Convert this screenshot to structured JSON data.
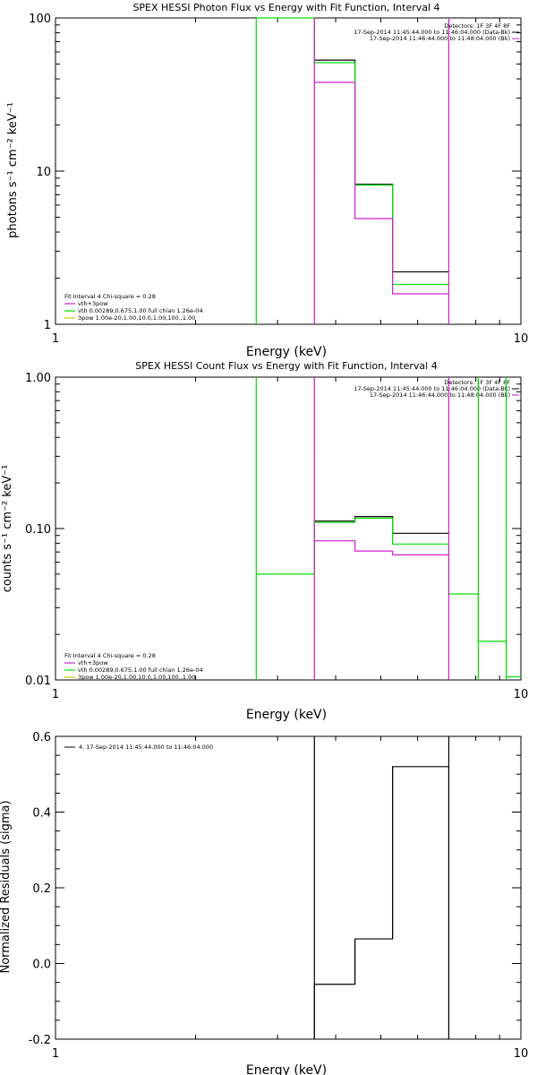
{
  "colors": {
    "background": "#ffffff",
    "axis": "#000000",
    "data": "#000000",
    "total_fit": "#000000",
    "vth_plus_3pow": "#d01fd0",
    "vth": "#00dd00",
    "three_pow": "#c8c800",
    "background_counts": "#c020c0"
  },
  "chart_data": [
    {
      "type": "line",
      "title": "SPEX HESSI Photon Flux vs Energy with Fit Function, Interval 4",
      "xlabel": "Energy (keV)",
      "ylabel": "photons s⁻¹ cm⁻² keV⁻¹",
      "xscale": "log",
      "yscale": "log",
      "xlim": [
        1,
        10
      ],
      "ylim": [
        1,
        100
      ],
      "xticks": [
        {
          "v": 1,
          "label": "1"
        },
        {
          "v": 10,
          "label": "10"
        }
      ],
      "yticks": [
        {
          "v": 1,
          "label": "1"
        },
        {
          "v": 10,
          "label": "10"
        },
        {
          "v": 100,
          "label": "100"
        }
      ],
      "vlines": [
        {
          "x": 3.6,
          "style": "dotted"
        },
        {
          "x": 7.0,
          "style": "dashed"
        }
      ],
      "legend_right": {
        "lines": [
          "Detectors: 1F 3F 4F 8F",
          "17-Sep-2014 11:45:44.000 to 11:46:04.000 (Data-Bk)",
          "17-Sep-2014 11:46:44.000 to 11:48:04.000 (Bk)"
        ]
      },
      "legend_left": {
        "header": "Fit Interval  4    Chi-square = 0.28",
        "entries": [
          {
            "label": "vth+3pow",
            "color": "#d01fd0"
          },
          {
            "label": "vth 0.00289,0.675,1.00  full chian 1.26e-04",
            "color": "#00dd00"
          },
          {
            "label": "3pow 1.00e-20,1.00,10.0,1.00,100.,1.00",
            "color": "#c8c800"
          }
        ]
      },
      "series": [
        {
          "color": "#000000",
          "edges": [
            3.6,
            4.4,
            5.3,
            6.3,
            7.0
          ],
          "values": [
            53,
            8.2,
            2.2,
            2.2
          ]
        },
        {
          "color": "#00dd00",
          "edges": [
            2.7,
            3.6,
            4.4,
            5.3,
            6.3,
            7.0
          ],
          "values": [
            100,
            51,
            8.1,
            1.82,
            1.82
          ]
        },
        {
          "color": "#d01fd0",
          "edges": [
            3.6,
            4.4,
            5.3,
            6.3,
            7.0
          ],
          "values": [
            38,
            4.9,
            1.58,
            1.58
          ]
        }
      ],
      "drops": [
        {
          "x": 2.7,
          "color": "#00dd00"
        },
        {
          "x": 3.6,
          "color": "#d01fd0"
        },
        {
          "x": 7.0,
          "color": "#d01fd0"
        }
      ]
    },
    {
      "type": "line",
      "title": "SPEX HESSI Count Flux vs Energy with Fit Function, Interval 4",
      "xlabel": "Energy (keV)",
      "ylabel": "counts s⁻¹ cm⁻² keV⁻¹",
      "xscale": "log",
      "yscale": "log",
      "xlim": [
        1,
        10
      ],
      "ylim": [
        0.01,
        1
      ],
      "xticks": [
        {
          "v": 1,
          "label": "1"
        },
        {
          "v": 10,
          "label": "10"
        }
      ],
      "yticks": [
        {
          "v": 0.01,
          "label": "0.01"
        },
        {
          "v": 0.1,
          "label": "0.10"
        },
        {
          "v": 1,
          "label": "1.00"
        }
      ],
      "vlines": [
        {
          "x": 3.6,
          "style": "dotted"
        },
        {
          "x": 7.0,
          "style": "dashed"
        }
      ],
      "legend_right": {
        "lines": [
          "Detectors: 1F 3F 4F 8F",
          "17-Sep-2014 11:45:44.000 to 11:46:04.000 (Data-Bk)",
          "17-Sep-2014 11:46:44.000 to 11:48:04.000 (Bk)"
        ]
      },
      "legend_left": {
        "header": "Fit Interval  4    Chi-square = 0.28",
        "entries": [
          {
            "label": "vth+3pow",
            "color": "#d01fd0"
          },
          {
            "label": "vth 0.00289,0.675,1.00  full chian 1.26e-04",
            "color": "#00dd00"
          },
          {
            "label": "3pow 1.00e-20,1.00,10.0,1.00,100.,1.00",
            "color": "#c8c800"
          }
        ]
      },
      "series": [
        {
          "color": "#000000",
          "edges": [
            3.6,
            4.4,
            5.3,
            6.3,
            7.0
          ],
          "values": [
            0.112,
            0.12,
            0.093,
            0.093
          ]
        },
        {
          "color": "#00dd00",
          "edges": [
            2.7,
            3.6,
            4.4,
            5.3,
            6.3,
            7.0,
            8.1,
            9.3,
            10.0
          ],
          "values": [
            0.05,
            0.11,
            0.117,
            0.079,
            0.079,
            0.037,
            0.018,
            0.0105
          ]
        },
        {
          "color": "#d01fd0",
          "edges": [
            3.6,
            4.4,
            5.3,
            6.3,
            7.0
          ],
          "values": [
            0.083,
            0.071,
            0.067,
            0.067
          ]
        }
      ],
      "drops": [
        {
          "x": 2.7,
          "color": "#00dd00"
        },
        {
          "x": 3.6,
          "color": "#d01fd0"
        },
        {
          "x": 7.0,
          "color": "#d01fd0"
        },
        {
          "x": 8.1,
          "color": "#00dd00"
        },
        {
          "x": 9.3,
          "color": "#00dd00"
        }
      ]
    },
    {
      "type": "line",
      "title": "",
      "xlabel": "Energy (keV)",
      "ylabel": "Normalized Residuals (sigma)",
      "xscale": "log",
      "yscale": "linear",
      "xlim": [
        1,
        10
      ],
      "ylim": [
        -0.2,
        0.6
      ],
      "xticks": [
        {
          "v": 1,
          "label": "1"
        },
        {
          "v": 10,
          "label": "10"
        }
      ],
      "yticks": [
        {
          "v": -0.2,
          "label": "-0.2"
        },
        {
          "v": 0.0,
          "label": "0.0"
        },
        {
          "v": 0.2,
          "label": "0.2"
        },
        {
          "v": 0.4,
          "label": "0.4"
        },
        {
          "v": 0.6,
          "label": "0.6"
        }
      ],
      "legend_right": null,
      "legend_left": null,
      "legend_top": {
        "label": "4. 17-Sep-2014 11:45:44.000 to 11:46:04.000",
        "color": "#000000"
      },
      "series": [
        {
          "color": "#000000",
          "edges": [
            3.6,
            4.4,
            5.3,
            6.3,
            7.0
          ],
          "values": [
            -0.055,
            0.065,
            0.52,
            0.52
          ]
        }
      ],
      "drops": [
        {
          "x": 3.6,
          "color": "#000000"
        },
        {
          "x": 7.0,
          "color": "#000000"
        }
      ]
    }
  ]
}
